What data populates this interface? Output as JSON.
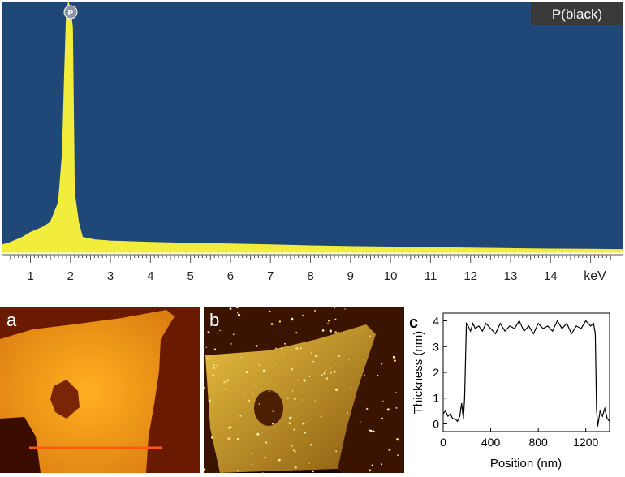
{
  "eds": {
    "legend": "P(black)",
    "peak_marker": "P",
    "unit_label": "keV",
    "colors": {
      "background": "#1f4878",
      "spectrum": "#f2ec3c",
      "axis_band": "#ffffff"
    }
  },
  "afm": {
    "panel_a_label": "a",
    "panel_b_label": "b",
    "scale_bar_color": "#ff5a10"
  },
  "chart_data": [
    {
      "type": "area",
      "xlabel": "keV",
      "ylabel": "",
      "xlim": [
        0.3,
        15.8
      ],
      "x_ticks": [
        1,
        2,
        3,
        4,
        5,
        6,
        7,
        8,
        9,
        10,
        11,
        12,
        13,
        14
      ],
      "x_tick_labels": [
        "1",
        "2",
        "3",
        "4",
        "5",
        "6",
        "7",
        "8",
        "9",
        "10",
        "11",
        "12",
        "13",
        "14"
      ],
      "ylim": [
        0,
        100
      ],
      "series": [
        {
          "x": [
            0.3,
            0.5,
            0.8,
            1.0,
            1.3,
            1.5,
            1.7,
            1.8,
            1.85,
            1.9,
            1.95,
            2.0,
            2.05,
            2.1,
            2.2,
            2.3,
            2.6,
            3.0,
            4.0,
            5.0,
            6.0,
            7.0,
            8.0,
            9.0,
            10.0,
            11.0,
            12.0,
            13.0,
            14.0,
            15.0,
            15.8
          ],
          "values": [
            3,
            4,
            6,
            8,
            10,
            12,
            20,
            40,
            70,
            96,
            100,
            97,
            90,
            24,
            12,
            6,
            5,
            4.5,
            4,
            3.6,
            3.3,
            3,
            2.6,
            2.3,
            2.1,
            1.9,
            1.7,
            1.5,
            1.3,
            1.2,
            1.1
          ]
        }
      ],
      "legend": "P(black)",
      "legend_position": "top-right",
      "annotations": [
        "P"
      ]
    },
    {
      "type": "line",
      "title": "",
      "xlabel": "Position (nm)",
      "ylabel": "Thickness (nm)",
      "xlim": [
        0,
        1400
      ],
      "ylim": [
        -0.3,
        4.3
      ],
      "x_ticks": [
        0,
        400,
        800,
        1200
      ],
      "y_ticks": [
        0,
        1,
        2,
        3,
        4
      ],
      "x_tick_labels": [
        "0",
        "400",
        "800",
        "1200"
      ],
      "y_tick_labels": [
        "0",
        "1",
        "2",
        "3",
        "4"
      ],
      "grid": false,
      "series": [
        {
          "x": [
            0,
            20,
            40,
            60,
            80,
            100,
            120,
            140,
            155,
            170,
            180,
            195,
            210,
            230,
            250,
            270,
            300,
            330,
            360,
            400,
            440,
            480,
            520,
            560,
            600,
            640,
            680,
            720,
            760,
            800,
            840,
            880,
            920,
            960,
            1000,
            1040,
            1080,
            1120,
            1160,
            1200,
            1240,
            1265,
            1280,
            1290,
            1300,
            1320,
            1340,
            1360,
            1380,
            1400
          ],
          "values": [
            0.4,
            0.5,
            0.3,
            0.4,
            0.2,
            0.2,
            0.1,
            0.3,
            0.8,
            0.2,
            1.0,
            3.9,
            3.8,
            3.6,
            3.9,
            3.7,
            3.8,
            3.6,
            3.9,
            3.7,
            3.5,
            3.9,
            3.6,
            3.8,
            3.7,
            4.0,
            3.6,
            3.8,
            3.5,
            3.9,
            3.7,
            3.8,
            3.6,
            4.0,
            3.7,
            3.9,
            3.5,
            3.8,
            3.7,
            4.0,
            3.8,
            3.9,
            3.5,
            0.6,
            -0.1,
            0.5,
            0.3,
            0.6,
            0.2,
            0.1
          ]
        }
      ]
    }
  ]
}
